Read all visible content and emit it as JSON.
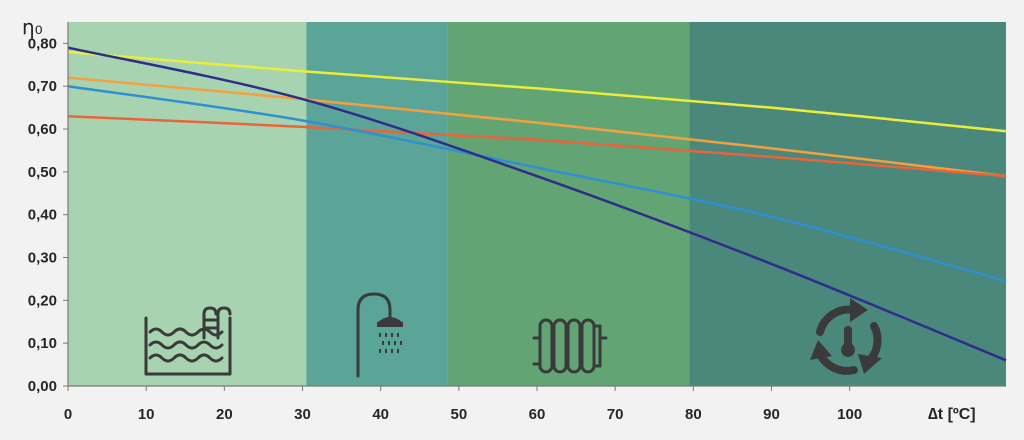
{
  "chart_data": {
    "type": "line",
    "ylabel": "η₀",
    "xlabel": "∆t [ºC]",
    "xlim": [
      0,
      120
    ],
    "ylim": [
      0,
      0.85
    ],
    "x_ticks": [
      "0",
      "10",
      "20",
      "30",
      "40",
      "50",
      "60",
      "70",
      "80",
      "90",
      "100"
    ],
    "y_ticks": [
      "0,00",
      "0,10",
      "0,20",
      "0,30",
      "0,40",
      "0,50",
      "0,60",
      "0,70",
      "0,80"
    ],
    "grid": false,
    "bands": [
      {
        "from": 0,
        "to": 30.5,
        "color": "#a7d3b0",
        "icon": "pool-icon"
      },
      {
        "from": 30.5,
        "to": 48.5,
        "color": "#5aa597",
        "icon": "shower-icon"
      },
      {
        "from": 48.5,
        "to": 79.5,
        "color": "#62a474",
        "icon": "radiator-icon"
      },
      {
        "from": 79.5,
        "to": 120,
        "color": "#4b887c",
        "icon": "heating-cycle-icon"
      }
    ],
    "series": [
      {
        "color": "#e8ee3a",
        "x": [
          0,
          30,
          60,
          90,
          120
        ],
        "values": [
          0.78,
          0.735,
          0.695,
          0.65,
          0.595
        ]
      },
      {
        "color": "#f2a040",
        "x": [
          0,
          30,
          60,
          90,
          120
        ],
        "values": [
          0.72,
          0.67,
          0.615,
          0.555,
          0.49
        ]
      },
      {
        "color": "#e8643a",
        "x": [
          0,
          30,
          60,
          90,
          120
        ],
        "values": [
          0.63,
          0.605,
          0.575,
          0.535,
          0.49
        ]
      },
      {
        "color": "#2f8fd0",
        "x": [
          0,
          30,
          60,
          90,
          120
        ],
        "values": [
          0.7,
          0.62,
          0.51,
          0.395,
          0.245
        ]
      },
      {
        "color": "#2e2e8a",
        "x": [
          0,
          30,
          60,
          90,
          120
        ],
        "values": [
          0.79,
          0.67,
          0.49,
          0.285,
          0.06
        ]
      }
    ]
  }
}
